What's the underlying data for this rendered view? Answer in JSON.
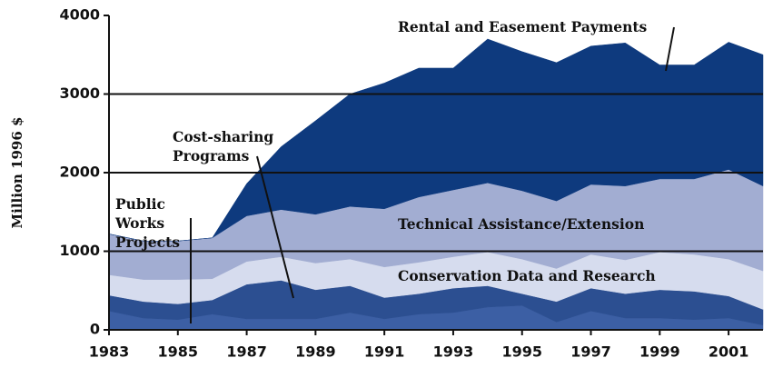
{
  "chart_data": {
    "type": "stacked_area",
    "ylabel": "Million 1996 $",
    "x": [
      1983,
      1984,
      1985,
      1986,
      1987,
      1988,
      1989,
      1990,
      1991,
      1992,
      1993,
      1994,
      1995,
      1996,
      1997,
      1998,
      1999,
      2000,
      2001,
      2002
    ],
    "series": [
      {
        "name": "Public Works Projects",
        "color": "#3c5fa4",
        "values": [
          240,
          150,
          130,
          200,
          140,
          140,
          140,
          220,
          140,
          200,
          220,
          290,
          310,
          100,
          240,
          150,
          150,
          130,
          150,
          60
        ]
      },
      {
        "name": "Cost-sharing Programs",
        "color": "#2c4f91",
        "values": [
          200,
          210,
          200,
          180,
          440,
          490,
          370,
          340,
          270,
          260,
          310,
          270,
          150,
          260,
          290,
          310,
          360,
          360,
          280,
          200
        ]
      },
      {
        "name": "Conservation Data and Research",
        "color": "#d6dcee",
        "values": [
          260,
          280,
          310,
          270,
          290,
          300,
          340,
          340,
          390,
          400,
          400,
          430,
          440,
          420,
          430,
          430,
          480,
          470,
          470,
          490
        ]
      },
      {
        "name": "Technical Assistance/Extension",
        "color": "#a2add2",
        "values": [
          520,
          490,
          490,
          520,
          580,
          600,
          620,
          670,
          740,
          830,
          850,
          880,
          870,
          860,
          890,
          940,
          930,
          960,
          1140,
          1080
        ]
      },
      {
        "name": "Rental and Easement Payments",
        "color": "#0e3a7e",
        "values": [
          0,
          0,
          0,
          0,
          410,
          800,
          1190,
          1430,
          1600,
          1640,
          1550,
          1830,
          1770,
          1760,
          1760,
          1820,
          1450,
          1450,
          1620,
          1670
        ]
      }
    ],
    "xlim": [
      1983,
      2002
    ],
    "xticks": [
      1983,
      1985,
      1987,
      1989,
      1991,
      1993,
      1995,
      1997,
      1999,
      2001
    ],
    "ylim": [
      0,
      4000
    ],
    "yticks": [
      0,
      1000,
      2000,
      3000,
      4000
    ],
    "grid": true
  }
}
